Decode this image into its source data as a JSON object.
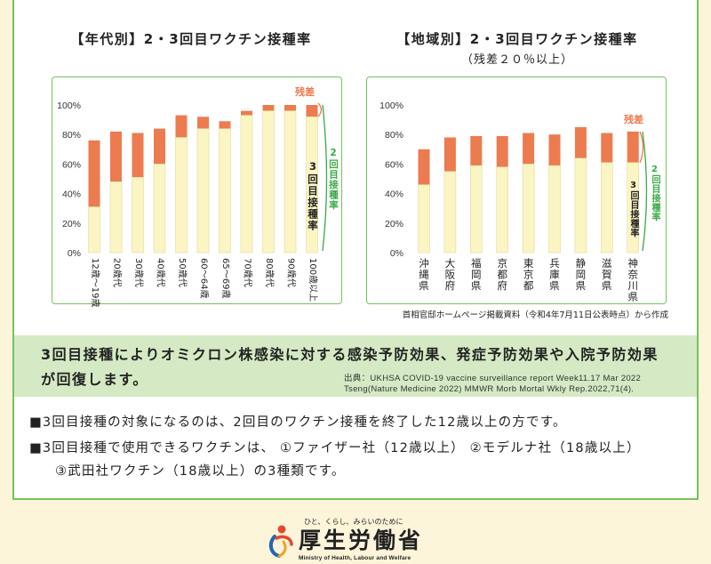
{
  "colors": {
    "page_bg": "#fcf5da",
    "panel_border": "#76c160",
    "banner_bg": "#d5eac4",
    "residual": "#ec7b4f",
    "third_dose": "#fbf5c3",
    "second_dose_label": "#3aa946",
    "text": "#222222"
  },
  "chart_data": [
    {
      "type": "bar",
      "overlay": true,
      "title": "【年代別】2・3回目ワクチン接種率",
      "categories": [
        "12歳～19歳",
        "20歳代",
        "30歳代",
        "40歳代",
        "50歳代",
        "60～64歳",
        "65～69歳",
        "70歳代",
        "80歳代",
        "90歳代",
        "100歳以上"
      ],
      "series": [
        {
          "name": "2回目接種率",
          "values": [
            76,
            82,
            81,
            84,
            93,
            92,
            89,
            96,
            100,
            100,
            100
          ]
        },
        {
          "name": "3回目接種率",
          "values": [
            31,
            48,
            51,
            60,
            78,
            84,
            84,
            93,
            96,
            96,
            92
          ]
        }
      ],
      "residual_label": "残差",
      "ylim": [
        0,
        100
      ],
      "yticks": [
        0,
        20,
        40,
        60,
        80,
        100
      ],
      "ytick_labels": [
        "0%",
        "20%",
        "40%",
        "60%",
        "80%",
        "100%"
      ],
      "grid": false
    },
    {
      "type": "bar",
      "overlay": true,
      "title": "【地域別】2・3回目ワクチン接種率",
      "subtitle": "（残差２０％以上）",
      "categories": [
        "沖縄県",
        "大阪府",
        "福岡県",
        "京都府",
        "東京都",
        "兵庫県",
        "静岡県",
        "滋賀県",
        "神奈川県"
      ],
      "series": [
        {
          "name": "2回目接種率",
          "values": [
            70,
            78,
            79,
            79,
            81,
            80,
            85,
            81,
            82
          ]
        },
        {
          "name": "3回目接種率",
          "values": [
            46,
            55,
            59,
            58,
            60,
            59,
            64,
            61,
            61
          ]
        }
      ],
      "residual_label": "残差",
      "ylim": [
        0,
        100
      ],
      "yticks": [
        0,
        20,
        40,
        60,
        80,
        100
      ],
      "ytick_labels": [
        "0%",
        "20%",
        "40%",
        "60%",
        "80%",
        "100%"
      ],
      "grid": false
    }
  ],
  "source_note": "首相官邸ホームページ掲載資料（令和4年7月11日公表時点）から作成",
  "banner": {
    "lines": [
      "3回目接種によりオミクロン株感染に対する感染予防効果、発症予防効果や入院予防効果",
      "が回復します。"
    ],
    "citations": [
      "出典：UKHSA COVID-19 vaccine surveillance report Week11.17 Mar 2022",
      "Tseng(Nature Medicine 2022) MMWR Morb Mortal Wkly Rep.2022,71(4)."
    ]
  },
  "notes": [
    "■3回目接種の対象になるのは、2回目のワクチン接種を終了した12歳以上の方です。",
    "■3回目接種で使用できるワクチンは、 ①ファイザー社（12歳以上） ②モデルナ社（18歳以上）",
    "③武田社ワクチン（18歳以上）の3種類です。"
  ],
  "logo": {
    "icon": "mhlw-person-icon",
    "tagline": "ひと、くらし、みらいのために",
    "name": "厚生労働省",
    "english": "Ministry of Health, Labour and Welfare"
  }
}
